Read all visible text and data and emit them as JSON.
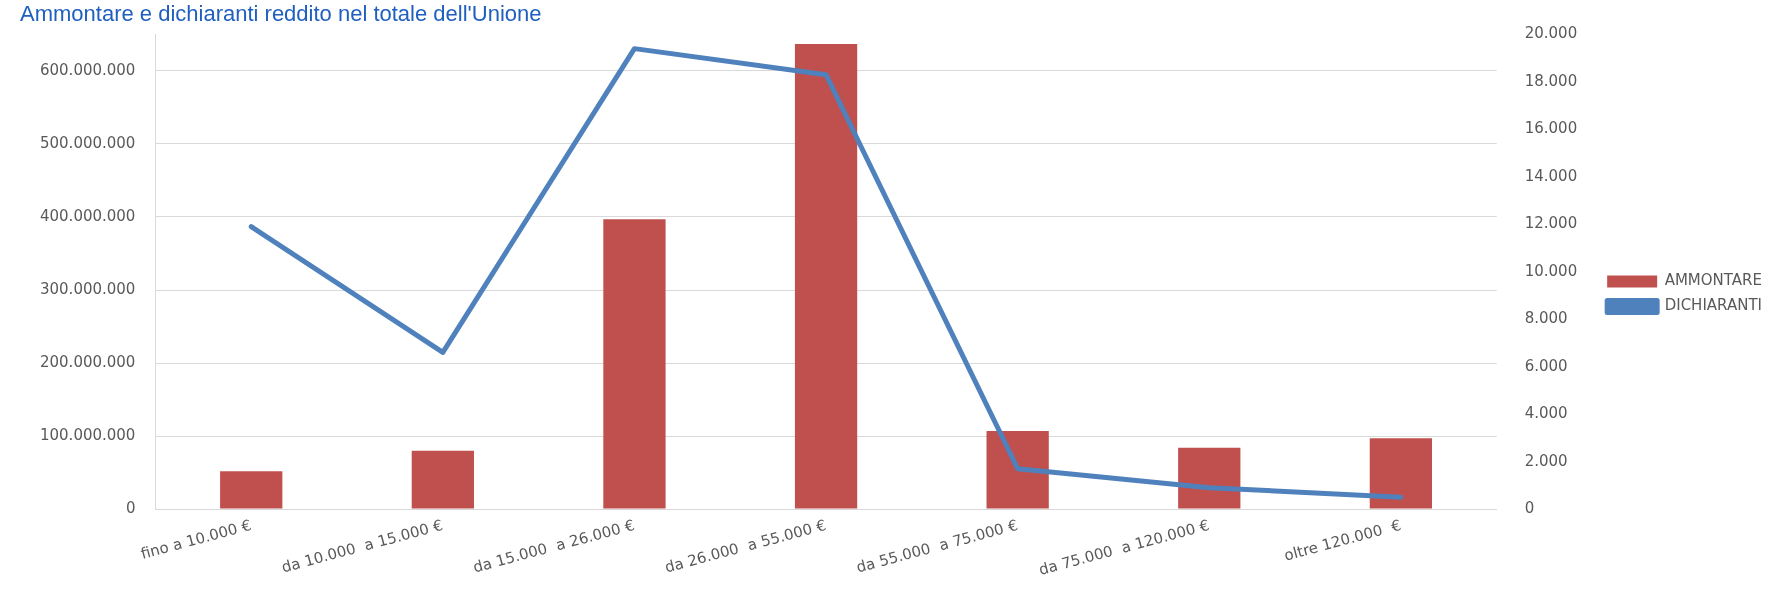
{
  "chart_data": {
    "type": "bar",
    "title": "Ammontare e dichiaranti reddito nel totale dell'Unione",
    "categories": [
      "fino a 10.000 €",
      "da 10.000  a 15.000 €",
      "da 15.000  a 26.000 €",
      "da 26.000  a 55.000 €",
      "da 55.000  a 75.000 €",
      "da 75.000  a 120.000 €",
      "oltre 120.000  €"
    ],
    "series": [
      {
        "name": "AMMONTARE",
        "color": "#c0504d",
        "values": [
          52000000,
          80000000,
          397000000,
          637000000,
          107000000,
          84000000,
          97000000
        ]
      },
      {
        "name": "DICHIARANTI",
        "type": "line",
        "axis": "y2",
        "color": "#4f81bd",
        "values": [
          11900,
          6600,
          19400,
          18300,
          1700,
          900,
          500
        ]
      }
    ],
    "ylim": [
      0,
      650000000
    ],
    "yticks": [
      0,
      {
        "value": 100000000,
        "label": "100.000.000"
      },
      {
        "value": 200000000,
        "label": "200.000.000"
      },
      {
        "value": 300000000,
        "label": "300.000.000"
      },
      {
        "value": 400000000,
        "label": "400.000.000"
      },
      {
        "value": 500000000,
        "label": "500.000.000"
      },
      {
        "value": 600000000,
        "label": "600.000.000"
      }
    ],
    "y2lim": [
      0,
      20000
    ],
    "y2ticks": [
      0,
      {
        "value": 2000,
        "label": "2.000"
      },
      {
        "value": 4000,
        "label": "4.000"
      },
      {
        "value": 6000,
        "label": "6.000"
      },
      {
        "value": 8000,
        "label": "8.000"
      },
      {
        "value": 10000,
        "label": "10.000"
      },
      {
        "value": 12000,
        "label": "12.000"
      },
      {
        "value": 14000,
        "label": "14.000"
      },
      {
        "value": 16000,
        "label": "16.000"
      },
      {
        "value": 18000,
        "label": "18.000"
      },
      {
        "value": 20000,
        "label": "20.000"
      }
    ],
    "grid": "y",
    "legend": "right",
    "marker": "none",
    "line_style": "solid"
  }
}
